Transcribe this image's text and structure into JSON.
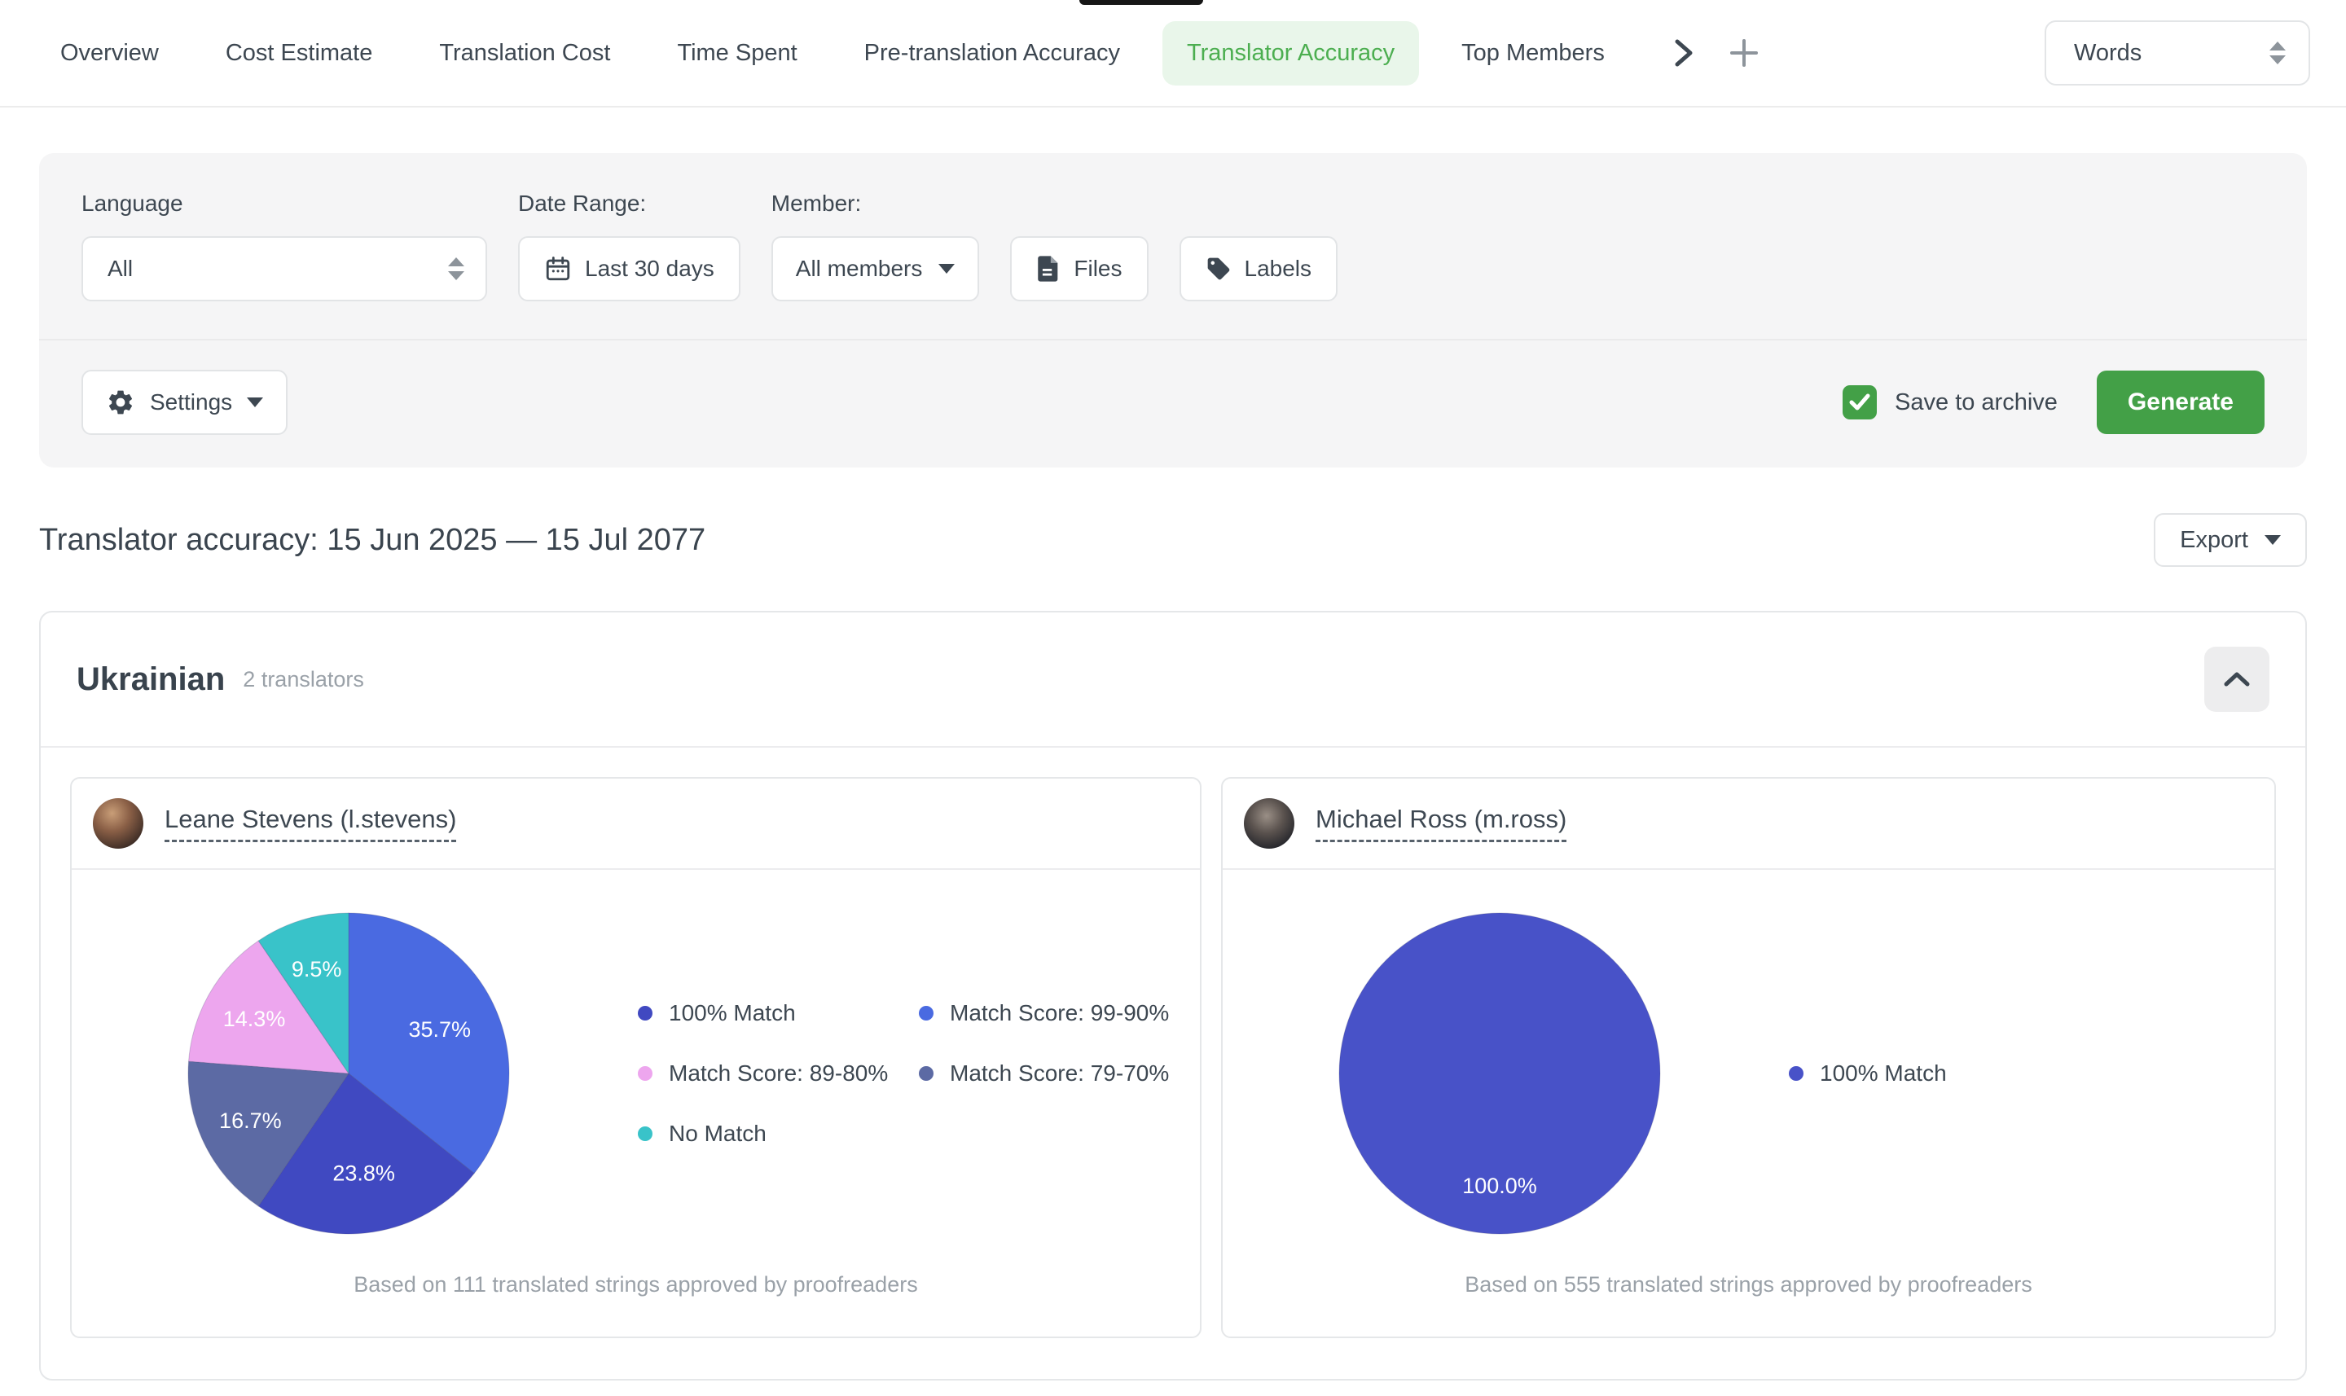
{
  "tabbar": {
    "tabs": [
      {
        "label": "Overview",
        "active": false
      },
      {
        "label": "Cost Estimate",
        "active": false
      },
      {
        "label": "Translation Cost",
        "active": false
      },
      {
        "label": "Time Spent",
        "active": false
      },
      {
        "label": "Pre-translation Accuracy",
        "active": false
      },
      {
        "label": "Translator Accuracy",
        "active": true
      },
      {
        "label": "Top Members",
        "active": false
      }
    ],
    "unit_select": {
      "value": "Words"
    }
  },
  "filters": {
    "language": {
      "label": "Language",
      "value": "All"
    },
    "date_range": {
      "label": "Date Range:",
      "value": "Last 30 days"
    },
    "member": {
      "label": "Member:",
      "value": "All members"
    },
    "files_button": "Files",
    "labels_button": "Labels",
    "settings_button": "Settings",
    "save_to_archive": {
      "label": "Save to archive",
      "checked": true
    },
    "generate_button": "Generate"
  },
  "report": {
    "title": "Translator accuracy: 15 Jun 2025 — 15 Jul 2077",
    "export_button": "Export"
  },
  "language_section": {
    "name": "Ukrainian",
    "translators_count": "2 translators",
    "translators": [
      {
        "name": "Leane Stevens (l.stevens)",
        "footer": "Based on 111 translated strings approved by proofreaders"
      },
      {
        "name": "Michael Ross (m.ross)",
        "footer": "Based on 555 translated strings approved by proofreaders"
      }
    ]
  },
  "icons": {
    "calendar-icon": "calendar outline",
    "file-icon": "document",
    "tag-icon": "label tag",
    "gear-icon": "settings gear",
    "check-icon": "checkmark",
    "chevron-right-icon": "more tabs",
    "plus-icon": "add report tab",
    "chevron-up-icon": "collapse section",
    "sort-arrows-icon": "select up/down arrows",
    "caret-down-icon": "dropdown caret"
  },
  "colors": {
    "accent_green": "#43a047",
    "active_tab_bg": "#e9f6ea",
    "active_tab_text": "#4cae50",
    "panel_bg": "#f5f5f6",
    "muted_text": "#9aa1a8"
  },
  "chart_data": [
    {
      "type": "pie",
      "translator": "Leane Stevens (l.stevens)",
      "clockwise_from_top": true,
      "slices": [
        {
          "label": "Match Score: 99-90%",
          "value": 35.7,
          "display": "35.7%",
          "color": "#4a6ae1"
        },
        {
          "label": "100% Match",
          "value": 23.8,
          "display": "23.8%",
          "color": "#4049c1"
        },
        {
          "label": "Match Score: 79-70%",
          "value": 16.7,
          "display": "16.7%",
          "color": "#5c6aa4"
        },
        {
          "label": "Match Score: 89-80%",
          "value": 14.3,
          "display": "14.3%",
          "color": "#eda6ee"
        },
        {
          "label": "No Match",
          "value": 9.5,
          "display": "9.5%",
          "color": "#39c3c9"
        }
      ],
      "legend": [
        {
          "label": "100% Match",
          "color": "#4049c1"
        },
        {
          "label": "Match Score: 99-90%",
          "color": "#4a6ae1"
        },
        {
          "label": "Match Score: 89-80%",
          "color": "#eda6ee"
        },
        {
          "label": "Match Score: 79-70%",
          "color": "#5c6aa4"
        },
        {
          "label": "No Match",
          "color": "#39c3c9"
        }
      ],
      "legend_position": "right"
    },
    {
      "type": "pie",
      "translator": "Michael Ross (m.ross)",
      "clockwise_from_top": true,
      "slices": [
        {
          "label": "100% Match",
          "value": 100.0,
          "display": "100.0%",
          "color": "#4852c8"
        }
      ],
      "legend": [
        {
          "label": "100% Match",
          "color": "#4852c8"
        }
      ],
      "legend_position": "right"
    }
  ]
}
